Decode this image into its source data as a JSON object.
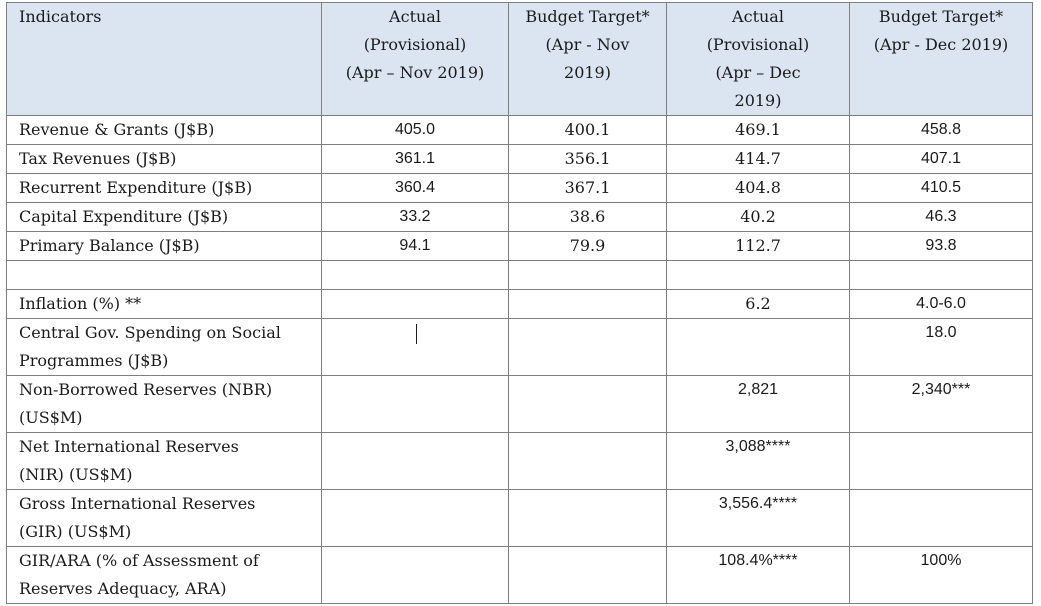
{
  "header": {
    "indicators": "Indicators",
    "col1": [
      "Actual",
      "(Provisional)",
      "(Apr – Nov 2019)"
    ],
    "col2": [
      "Budget Target*",
      "(Apr - Nov",
      "2019)"
    ],
    "col3": [
      "Actual",
      "(Provisional)",
      "(Apr – Dec",
      "2019)"
    ],
    "col4": [
      "Budget Target*",
      "(Apr - Dec 2019)"
    ]
  },
  "rows": [
    {
      "label": [
        "Revenue & Grants (J$B)"
      ],
      "v": [
        "405.0",
        "400.1",
        "469.1",
        "458.8"
      ]
    },
    {
      "label": [
        "Tax Revenues (J$B)"
      ],
      "v": [
        "361.1",
        "356.1",
        "414.7",
        "407.1"
      ]
    },
    {
      "label": [
        "Recurrent Expenditure (J$B)"
      ],
      "v": [
        "360.4",
        "367.1",
        "404.8",
        "410.5"
      ]
    },
    {
      "label": [
        "Capital Expenditure (J$B)"
      ],
      "v": [
        "33.2",
        "38.6",
        "40.2",
        "46.3"
      ]
    },
    {
      "label": [
        "Primary Balance (J$B)"
      ],
      "v": [
        "94.1",
        "79.9",
        "112.7",
        "93.8"
      ]
    },
    {
      "label": [
        ""
      ],
      "v": [
        "",
        "",
        "",
        ""
      ]
    },
    {
      "label": [
        "Inflation (%) **"
      ],
      "v": [
        "",
        "",
        "6.2",
        "4.0-6.0"
      ]
    },
    {
      "label": [
        "Central Gov. Spending on Social",
        "Programmes (J$B)"
      ],
      "v": [
        "",
        "",
        "",
        "18.0"
      ]
    },
    {
      "label": [
        "Non-Borrowed Reserves (NBR)",
        "(US$M)"
      ],
      "v": [
        "",
        "",
        "2,821",
        "2,340***"
      ]
    },
    {
      "label": [
        "Net International Reserves",
        "(NIR) (US$M)"
      ],
      "v": [
        "",
        "",
        "3,088****",
        ""
      ]
    },
    {
      "label": [
        "Gross International Reserves",
        "(GIR) (US$M)"
      ],
      "v": [
        "",
        "",
        "3,556.4****",
        ""
      ]
    },
    {
      "label": [
        "GIR/ARA (% of Assessment of",
        "Reserves Adequacy, ARA)"
      ],
      "v": [
        "",
        "",
        "108.4%****",
        "100%"
      ]
    }
  ]
}
